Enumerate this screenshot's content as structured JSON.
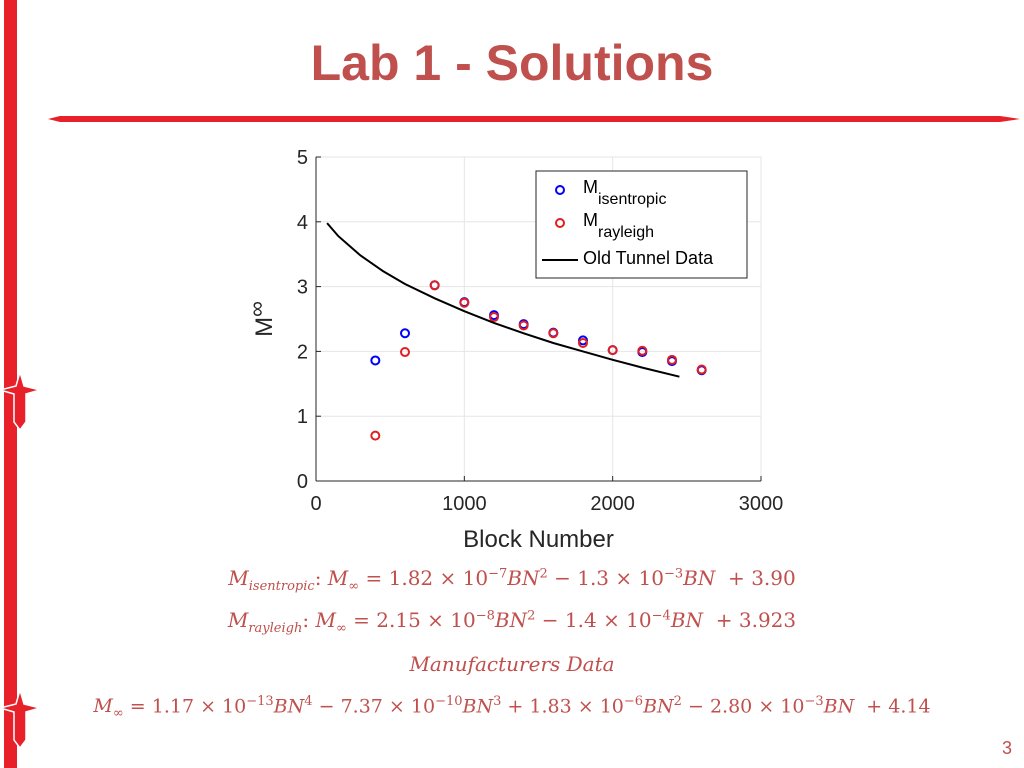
{
  "slide": {
    "title": "Lab 1  - Solutions",
    "page_number": "3"
  },
  "colors": {
    "accent": "#c0504d",
    "rule": "#e8202a",
    "isentropic": "#0000ff",
    "rayleigh": "#e02020",
    "old_tunnel": "#000000"
  },
  "equations": {
    "isentropic": {
      "subscript": "isentropic",
      "c2": "1.82",
      "e2": "−7",
      "c1": "1.3",
      "e1": "−3",
      "c0": "3.90"
    },
    "rayleigh": {
      "subscript": "rayleigh",
      "c2": "2.15",
      "e2": "−8",
      "c1": "1.4",
      "e1": "−4",
      "c0": "3.923"
    },
    "manufacturers_label": "Manufacturers Data",
    "manufacturers": {
      "c4": "1.17",
      "e4": "−13",
      "c3": "7.37",
      "e3": "−10",
      "c2": "1.83",
      "e2": "−6",
      "c1": "2.80",
      "e1": "−3",
      "c0": "4.14"
    }
  },
  "chart_data": {
    "type": "scatter",
    "xlabel": "Block Number",
    "ylabel": "M",
    "ylabel_subscript": "∞",
    "xlim": [
      0,
      3000
    ],
    "ylim": [
      0,
      5
    ],
    "xticks": [
      0,
      1000,
      2000,
      3000
    ],
    "yticks": [
      0,
      1,
      2,
      3,
      4,
      5
    ],
    "grid": true,
    "legend_position": "top-right",
    "series": [
      {
        "name": "M",
        "name_subscript": "isentropic",
        "kind": "markers",
        "color": "#0000ff",
        "x": [
          400,
          600,
          800,
          1000,
          1200,
          1400,
          1600,
          1800,
          2000,
          2200,
          2400,
          2600
        ],
        "y": [
          1.86,
          2.28,
          3.02,
          2.76,
          2.56,
          2.42,
          2.29,
          2.17,
          2.02,
          1.99,
          1.85,
          1.71
        ]
      },
      {
        "name": "M",
        "name_subscript": "rayleigh",
        "kind": "markers",
        "color": "#e02020",
        "x": [
          400,
          600,
          800,
          1000,
          1200,
          1400,
          1600,
          1800,
          2000,
          2200,
          2400,
          2600
        ],
        "y": [
          0.7,
          1.99,
          3.02,
          2.75,
          2.53,
          2.4,
          2.28,
          2.13,
          2.02,
          2.01,
          1.87,
          1.72
        ]
      },
      {
        "name": "Old Tunnel Data",
        "kind": "line",
        "color": "#000000",
        "x": [
          75,
          150,
          300,
          450,
          600,
          800,
          1000,
          1200,
          1400,
          1600,
          1800,
          2000,
          2200,
          2450
        ],
        "y": [
          3.98,
          3.78,
          3.48,
          3.24,
          3.04,
          2.82,
          2.62,
          2.44,
          2.28,
          2.13,
          2.0,
          1.87,
          1.75,
          1.61
        ]
      }
    ]
  }
}
